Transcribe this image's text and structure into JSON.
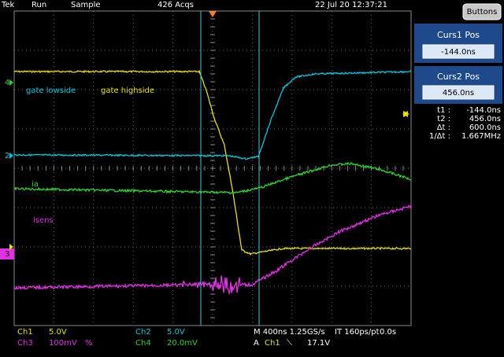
{
  "header": {
    "brand": "Tek",
    "state": "Run",
    "mode": "Sample",
    "acqs": "426 Acqs",
    "datetime": "22 Jul 20 12:37:21"
  },
  "cursor_panel": {
    "button": "Buttons",
    "curs1": {
      "label": "Curs1 Pos",
      "value": "-144.0ns"
    },
    "curs2": {
      "label": "Curs2 Pos",
      "value": "456.0ns"
    },
    "readout": [
      {
        "label": "t1 :",
        "value": "-144.0ns"
      },
      {
        "label": "t2 :",
        "value": "456.0ns"
      },
      {
        "label": "Δt :",
        "value": "600.0ns"
      },
      {
        "label": "1/Δt :",
        "value": "1.667MHz"
      }
    ]
  },
  "traces": {
    "ch2": "gate lowside",
    "ch1": "gate highside",
    "ch4": "ia",
    "ch3": "isens"
  },
  "markers": {
    "ch4": "4",
    "ch2": "2",
    "ch3": "3"
  },
  "footer": {
    "ch1": {
      "name": "Ch1",
      "scale": "5.0V"
    },
    "ch2": {
      "name": "Ch2",
      "scale": "5.0V"
    },
    "ch3": {
      "name": "Ch3",
      "scale": "100mV",
      "coupling": "%"
    },
    "ch4": {
      "name": "Ch4",
      "scale": "20.0mV"
    },
    "timebase": "M 400ns 1.25GS/s",
    "record": "IT 160ps/pt",
    "position": "0.0s",
    "trigger": {
      "prefix": "A",
      "source": "Ch1",
      "slope": "⟍",
      "level": "17.1V"
    }
  }
}
